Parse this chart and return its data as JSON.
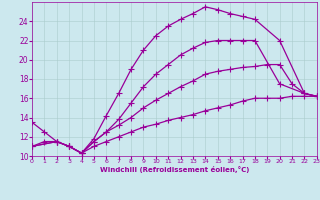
{
  "xlabel": "Windchill (Refroidissement éolien,°C)",
  "bg_color": "#cce8ee",
  "line_color": "#990099",
  "grid_color": "#aacccc",
  "xmin": 0,
  "xmax": 23,
  "ymin": 10,
  "ymax": 26,
  "yticks": [
    10,
    12,
    14,
    16,
    18,
    20,
    22,
    24
  ],
  "xticks": [
    0,
    1,
    2,
    3,
    4,
    5,
    6,
    7,
    8,
    9,
    10,
    11,
    12,
    13,
    14,
    15,
    16,
    17,
    18,
    19,
    20,
    21,
    22,
    23
  ],
  "curve1_x": [
    0,
    1,
    2,
    3,
    4,
    5,
    6,
    7,
    8,
    9,
    10,
    11,
    12,
    13,
    14,
    15,
    16,
    17,
    18,
    20,
    22,
    23
  ],
  "curve1_y": [
    13.5,
    12.5,
    11.5,
    11.0,
    10.3,
    11.8,
    14.2,
    16.5,
    19.0,
    21.0,
    22.5,
    23.5,
    24.2,
    24.8,
    25.5,
    25.2,
    24.8,
    24.5,
    24.2,
    22.0,
    16.5,
    16.2
  ],
  "curve2_x": [
    0,
    1,
    2,
    3,
    4,
    5,
    6,
    7,
    8,
    9,
    10,
    11,
    12,
    13,
    14,
    15,
    16,
    17,
    18,
    20,
    22,
    23
  ],
  "curve2_y": [
    11.0,
    11.5,
    11.5,
    11.0,
    10.3,
    11.5,
    12.5,
    13.8,
    15.5,
    17.2,
    18.5,
    19.5,
    20.5,
    21.2,
    21.8,
    22.0,
    22.0,
    22.0,
    22.0,
    17.5,
    16.5,
    16.2
  ],
  "curve3_x": [
    0,
    2,
    3,
    4,
    5,
    6,
    7,
    8,
    9,
    10,
    11,
    12,
    13,
    14,
    15,
    16,
    17,
    18,
    19,
    20,
    21,
    22,
    23
  ],
  "curve3_y": [
    11.0,
    11.5,
    11.0,
    10.3,
    11.5,
    12.5,
    13.2,
    14.0,
    15.0,
    15.8,
    16.5,
    17.2,
    17.8,
    18.5,
    18.8,
    19.0,
    19.2,
    19.3,
    19.5,
    19.5,
    17.5,
    16.5,
    16.2
  ],
  "curve4_x": [
    0,
    2,
    3,
    4,
    5,
    6,
    7,
    8,
    9,
    10,
    11,
    12,
    13,
    14,
    15,
    16,
    17,
    18,
    19,
    20,
    21,
    22,
    23
  ],
  "curve4_y": [
    11.0,
    11.5,
    11.0,
    10.3,
    11.0,
    11.5,
    12.0,
    12.5,
    13.0,
    13.3,
    13.7,
    14.0,
    14.3,
    14.7,
    15.0,
    15.3,
    15.7,
    16.0,
    16.0,
    16.0,
    16.2,
    16.2,
    16.2
  ]
}
